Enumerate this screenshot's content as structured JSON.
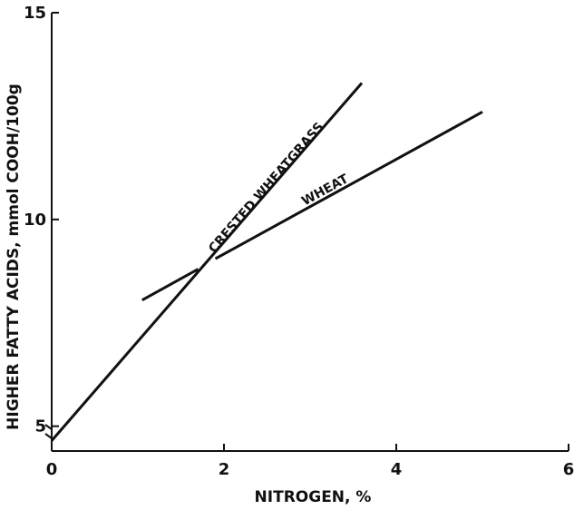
{
  "chart_data": {
    "type": "line",
    "xlabel": "NITROGEN, %",
    "ylabel": "HIGHER FATTY ACIDS, mmol COOH/100g",
    "xlim": [
      0,
      6
    ],
    "ylim": [
      4.4,
      15
    ],
    "x_ticks": [
      "0",
      "2",
      "4",
      "6"
    ],
    "y_ticks": [
      "5",
      "10",
      "15"
    ],
    "x_tick_values": [
      0,
      2,
      4,
      6
    ],
    "y_tick_values": [
      5,
      10,
      15
    ],
    "grid": false,
    "legend": "none",
    "series": [
      {
        "name": "CRESTED WHEATGRASS",
        "x": [
          0.0,
          3.6
        ],
        "y": [
          4.65,
          13.3
        ]
      },
      {
        "name": "WHEAT",
        "segments": [
          {
            "x": [
              1.05,
              1.7
            ],
            "y": [
              8.05,
              8.8
            ]
          },
          {
            "x": [
              1.9,
              5.0
            ],
            "y": [
              9.05,
              12.6
            ]
          }
        ]
      }
    ]
  }
}
